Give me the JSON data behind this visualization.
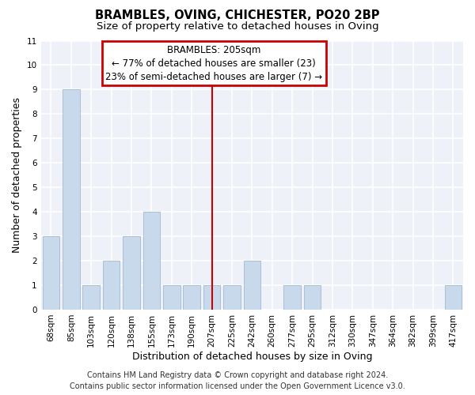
{
  "title1": "BRAMBLES, OVING, CHICHESTER, PO20 2BP",
  "title2": "Size of property relative to detached houses in Oving",
  "xlabel": "Distribution of detached houses by size in Oving",
  "ylabel": "Number of detached properties",
  "annotation_title": "BRAMBLES: 205sqm",
  "annotation_line1": "← 77% of detached houses are smaller (23)",
  "annotation_line2": "23% of semi-detached houses are larger (7) →",
  "footer1": "Contains HM Land Registry data © Crown copyright and database right 2024.",
  "footer2": "Contains public sector information licensed under the Open Government Licence v3.0.",
  "bar_labels": [
    "68sqm",
    "85sqm",
    "103sqm",
    "120sqm",
    "138sqm",
    "155sqm",
    "173sqm",
    "190sqm",
    "207sqm",
    "225sqm",
    "242sqm",
    "260sqm",
    "277sqm",
    "295sqm",
    "312sqm",
    "330sqm",
    "347sqm",
    "364sqm",
    "382sqm",
    "399sqm",
    "417sqm"
  ],
  "bar_heights": [
    3,
    9,
    1,
    2,
    3,
    4,
    1,
    1,
    1,
    1,
    2,
    0,
    1,
    1,
    0,
    0,
    0,
    0,
    0,
    0,
    1
  ],
  "bar_color": "#c8d9ec",
  "bar_edge_color": "#a8bfd8",
  "vline_x_index": 8,
  "vline_color": "#cc0000",
  "ylim": [
    0,
    11
  ],
  "yticks": [
    0,
    1,
    2,
    3,
    4,
    5,
    6,
    7,
    8,
    9,
    10,
    11
  ],
  "annotation_box_color": "#cc0000",
  "plot_bg_color": "#eef2f8",
  "fig_bg_color": "#ffffff",
  "grid_color": "#ffffff",
  "title_fontsize": 10.5,
  "subtitle_fontsize": 9.5,
  "axis_label_fontsize": 9,
  "tick_fontsize": 7.5,
  "ann_fontsize": 8.5,
  "footer_fontsize": 7
}
